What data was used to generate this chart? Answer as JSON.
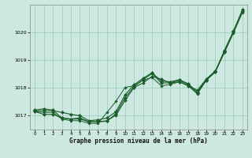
{
  "title": "Graphe pression niveau de la mer (hPa)",
  "bg_color": "#cce8e0",
  "plot_bg_color": "#cce8e0",
  "grid_color": "#99ccbb",
  "line_color": "#1a5c2a",
  "xlim": [
    -0.5,
    23.5
  ],
  "ylim": [
    1016.5,
    1021.0
  ],
  "yticks": [
    1017,
    1018,
    1019,
    1020
  ],
  "xticks": [
    0,
    1,
    2,
    3,
    4,
    5,
    6,
    7,
    8,
    9,
    10,
    11,
    12,
    13,
    14,
    15,
    16,
    17,
    18,
    19,
    20,
    21,
    22,
    23
  ],
  "series1": [
    1017.2,
    1017.25,
    1017.2,
    1016.92,
    1016.88,
    1016.88,
    1016.78,
    1016.78,
    1016.8,
    1017.08,
    1017.65,
    1018.05,
    1018.3,
    1018.52,
    1018.18,
    1018.18,
    1018.28,
    1018.12,
    1017.82,
    1018.28,
    1018.58,
    1019.32,
    1020.02,
    1020.78
  ],
  "series2": [
    1017.15,
    1017.05,
    1017.05,
    1016.92,
    1016.88,
    1016.92,
    1016.78,
    1016.78,
    1016.82,
    1017.02,
    1017.55,
    1018.02,
    1018.18,
    1018.42,
    1018.32,
    1018.18,
    1018.22,
    1018.08,
    1017.92,
    1018.32,
    1018.62,
    1019.28,
    1020.02,
    1020.78
  ],
  "series3": [
    1017.15,
    1017.12,
    1017.12,
    1016.88,
    1016.82,
    1016.82,
    1016.72,
    1016.72,
    1017.12,
    1017.52,
    1018.02,
    1018.08,
    1018.28,
    1018.38,
    1018.08,
    1018.12,
    1018.22,
    1018.08,
    1017.78,
    1018.28,
    1018.58,
    1019.28,
    1019.98,
    1020.72
  ],
  "series4": [
    1017.18,
    1017.18,
    1017.18,
    1017.12,
    1017.05,
    1017.0,
    1016.82,
    1016.85,
    1016.92,
    1017.15,
    1017.75,
    1018.12,
    1018.35,
    1018.55,
    1018.25,
    1018.22,
    1018.3,
    1018.15,
    1017.85,
    1018.3,
    1018.6,
    1019.35,
    1020.05,
    1020.82
  ]
}
